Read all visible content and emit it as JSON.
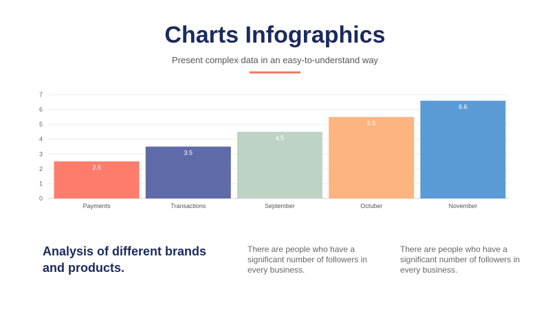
{
  "header": {
    "title": "Charts Infographics",
    "subtitle": "Present complex data in an easy-to-understand way",
    "accent_color": "#f17b62"
  },
  "chart_data": {
    "type": "bar",
    "categories": [
      "Payments",
      "Transactions",
      "September",
      "Octuber",
      "November"
    ],
    "values": [
      2.5,
      3.5,
      4.5,
      5.5,
      6.6
    ],
    "data_labels": [
      "2.5",
      "3.5",
      "4.5",
      "5.5",
      "6.6"
    ],
    "colors": [
      "#fe7c6c",
      "#5f6aa9",
      "#bed3c5",
      "#fdb47e",
      "#5b9bd5"
    ],
    "ylim": [
      0,
      7
    ],
    "yticks": [
      "0",
      "1",
      "2",
      "3",
      "4",
      "5",
      "6",
      "7"
    ],
    "grid": true,
    "title": "",
    "xlabel": "",
    "ylabel": ""
  },
  "footer": {
    "heading": "Analysis of different brands and products.",
    "description_1": "There are people who have a significant number of followers in every business.",
    "description_2": "There are people who have a significant number of followers in every business."
  }
}
